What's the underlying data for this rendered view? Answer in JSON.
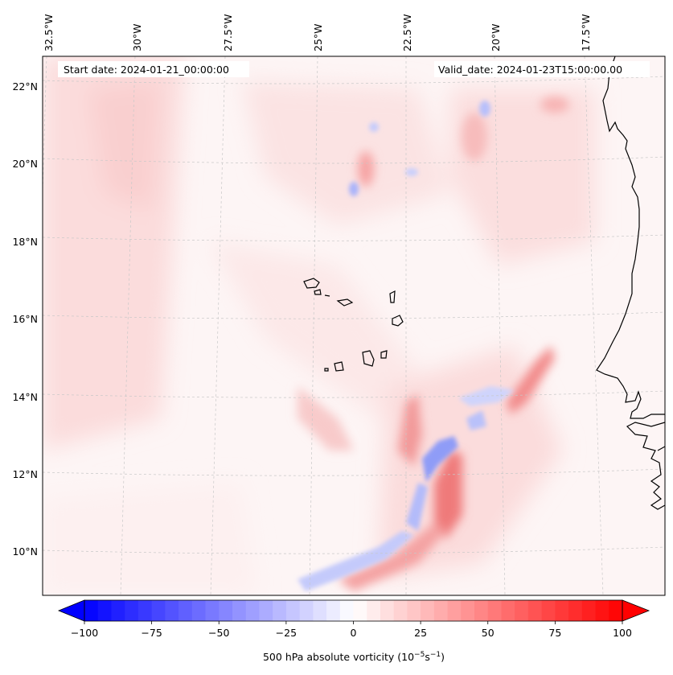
{
  "header": {
    "start_date": "Start date: 2024-01-21_00:00:00",
    "valid_date": "Valid_date: 2024-01-23T15:00:00.00"
  },
  "longitude_labels": [
    "32.5°W",
    "30°W",
    "27.5°W",
    "25°W",
    "22.5°W",
    "20°W",
    "17.5°W"
  ],
  "latitude_labels": [
    "22°N",
    "20°N",
    "18°N",
    "16°N",
    "14°N",
    "12°N",
    "10°N"
  ],
  "colorbar": {
    "min": -100,
    "max": 100,
    "ticks": [
      "−100",
      "−75",
      "−50",
      "−25",
      "0",
      "25",
      "50",
      "75",
      "100"
    ],
    "label": "500 hPa absolute vorticity (10",
    "label_exp1": "−5",
    "label_mid": "s",
    "label_exp2": "−1",
    "label_end": ")",
    "low_color": "#0000ff",
    "mid_color": "#ffffff",
    "high_color": "#ff0000"
  },
  "map": {
    "field": "500 hPa absolute vorticity",
    "background_tint": "#fdf3f3",
    "coastline_color": "#000000"
  }
}
